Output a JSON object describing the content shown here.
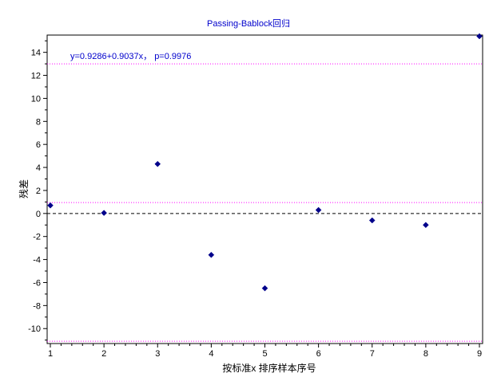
{
  "chart_data": {
    "type": "scatter",
    "title": "Passing-Bablock回归",
    "xlabel": "按标准x 排序样本序号",
    "ylabel": "残差",
    "xlim": [
      1,
      9
    ],
    "ylim": [
      -11.3,
      15.5
    ],
    "xticks": [
      1,
      2,
      3,
      4,
      5,
      6,
      7,
      8,
      9
    ],
    "yticks": [
      -10,
      -8,
      -6,
      -4,
      -2,
      0,
      2,
      4,
      6,
      8,
      10,
      12,
      14
    ],
    "x": [
      1,
      2,
      3,
      4,
      5,
      6,
      7,
      8,
      9
    ],
    "y": [
      0.7,
      0.05,
      4.3,
      -3.6,
      -6.5,
      0.3,
      -0.6,
      -1.0,
      15.4
    ],
    "annotation": "y=0.9286+0.9037x， p=0.9976",
    "reference_lines": [
      {
        "y": 13.0,
        "style": "dotted"
      },
      {
        "y": 0.95,
        "style": "dotted"
      },
      {
        "y": -11.1,
        "style": "dotted"
      },
      {
        "y": 0,
        "style": "dashed"
      }
    ],
    "grid": false,
    "colors": {
      "points": "#00008b",
      "reference": "#ff00ff",
      "title": "#0000cc",
      "annotation": "#0000cc",
      "zero_line": "#000000"
    }
  }
}
